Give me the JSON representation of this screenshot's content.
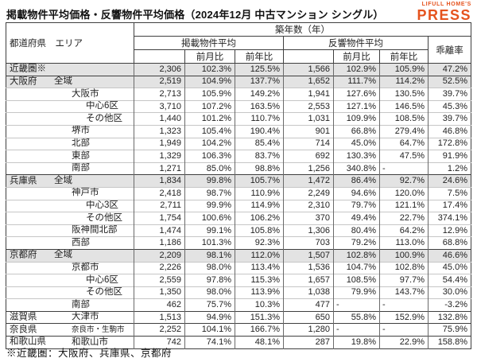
{
  "title": "掲載物件平均価格・反響物件平均価格（2024年12月 中古マンション シングル）",
  "logo": {
    "line1": "LIFULL HOME'S",
    "line2": "PRESS"
  },
  "colors": {
    "brand_orange": "#E5531E",
    "row_shade": "#E3E3E3",
    "border_dark": "#3f3f3f",
    "border_light": "#c6c6c6"
  },
  "footnote": "※近畿圏：大阪府、兵庫県、京都府",
  "table": {
    "header": {
      "pref_area": "都道府県　エリア",
      "building_age": "築年数（年）",
      "listed_avg": "掲載物件平均",
      "response_avg": "反響物件平均",
      "divergence": "乖離率",
      "mom": "前月比",
      "yoy": "前年比"
    },
    "rows": [
      {
        "pref": "近畿圏※",
        "area": "",
        "indent": 0,
        "shaded": true,
        "group": true,
        "values": [
          "2,306",
          "102.3%",
          "125.5%",
          "1,566",
          "102.9%",
          "105.9%",
          "47.2%"
        ]
      },
      {
        "pref": "大阪府",
        "area": "全域",
        "indent": 1,
        "shaded": true,
        "group": true,
        "values": [
          "2,519",
          "104.9%",
          "137.7%",
          "1,652",
          "111.7%",
          "114.2%",
          "52.5%"
        ]
      },
      {
        "pref": "",
        "area": "大阪市",
        "indent": 2,
        "values": [
          "2,713",
          "105.9%",
          "149.2%",
          "1,941",
          "127.6%",
          "130.5%",
          "39.7%"
        ]
      },
      {
        "pref": "",
        "area": "中心6区",
        "indent": 3,
        "values": [
          "3,710",
          "107.2%",
          "163.5%",
          "2,553",
          "127.1%",
          "146.5%",
          "45.3%"
        ]
      },
      {
        "pref": "",
        "area": "その他区",
        "indent": 3,
        "values": [
          "1,440",
          "101.2%",
          "110.7%",
          "1,031",
          "109.9%",
          "108.5%",
          "39.7%"
        ]
      },
      {
        "pref": "",
        "area": "堺市",
        "indent": 2,
        "values": [
          "1,323",
          "105.4%",
          "190.4%",
          "901",
          "66.8%",
          "279.4%",
          "46.8%"
        ]
      },
      {
        "pref": "",
        "area": "北部",
        "indent": 2,
        "values": [
          "1,949",
          "104.2%",
          "85.4%",
          "714",
          "45.0%",
          "64.7%",
          "172.8%"
        ]
      },
      {
        "pref": "",
        "area": "東部",
        "indent": 2,
        "values": [
          "1,329",
          "106.3%",
          "83.7%",
          "692",
          "130.3%",
          "47.5%",
          "91.9%"
        ]
      },
      {
        "pref": "",
        "area": "南部",
        "indent": 2,
        "values": [
          "1,271",
          "85.0%",
          "98.8%",
          "1,256",
          "340.8%",
          "-",
          "1.2%"
        ]
      },
      {
        "pref": "兵庫県",
        "area": "全域",
        "indent": 1,
        "shaded": true,
        "group": true,
        "values": [
          "1,834",
          "99.8%",
          "105.7%",
          "1,472",
          "86.4%",
          "92.7%",
          "24.6%"
        ]
      },
      {
        "pref": "",
        "area": "神戸市",
        "indent": 2,
        "values": [
          "2,418",
          "98.7%",
          "110.9%",
          "2,249",
          "94.6%",
          "120.0%",
          "7.5%"
        ]
      },
      {
        "pref": "",
        "area": "中心3区",
        "indent": 3,
        "values": [
          "2,711",
          "99.9%",
          "114.9%",
          "2,310",
          "79.7%",
          "121.1%",
          "17.4%"
        ]
      },
      {
        "pref": "",
        "area": "その他区",
        "indent": 3,
        "values": [
          "1,754",
          "100.6%",
          "106.2%",
          "370",
          "49.4%",
          "22.7%",
          "374.1%"
        ]
      },
      {
        "pref": "",
        "area": "阪神間北部",
        "indent": 2,
        "values": [
          "1,474",
          "99.1%",
          "105.8%",
          "1,306",
          "80.4%",
          "64.2%",
          "12.9%"
        ]
      },
      {
        "pref": "",
        "area": "西部",
        "indent": 2,
        "values": [
          "1,186",
          "101.3%",
          "92.3%",
          "703",
          "79.2%",
          "113.0%",
          "68.8%"
        ]
      },
      {
        "pref": "京都府",
        "area": "全域",
        "indent": 1,
        "shaded": true,
        "group": true,
        "values": [
          "2,209",
          "98.1%",
          "112.0%",
          "1,507",
          "102.8%",
          "100.9%",
          "46.6%"
        ]
      },
      {
        "pref": "",
        "area": "京都市",
        "indent": 2,
        "values": [
          "2,226",
          "98.0%",
          "113.4%",
          "1,536",
          "104.7%",
          "102.8%",
          "45.0%"
        ]
      },
      {
        "pref": "",
        "area": "中心6区",
        "indent": 3,
        "values": [
          "2,559",
          "97.8%",
          "115.3%",
          "1,657",
          "108.5%",
          "97.7%",
          "54.4%"
        ]
      },
      {
        "pref": "",
        "area": "その他区",
        "indent": 3,
        "values": [
          "1,350",
          "98.0%",
          "113.9%",
          "1,038",
          "79.9%",
          "143.7%",
          "30.0%"
        ]
      },
      {
        "pref": "",
        "area": "南部",
        "indent": 2,
        "values": [
          "462",
          "75.7%",
          "10.3%",
          "477",
          "-",
          "-",
          "-3.2%"
        ]
      },
      {
        "pref": "滋賀県",
        "area": "大津市",
        "indent": 2,
        "group": true,
        "values": [
          "1,513",
          "94.9%",
          "151.3%",
          "650",
          "55.8%",
          "152.9%",
          "132.8%"
        ]
      },
      {
        "pref": "奈良県",
        "area": "奈良市・生駒市",
        "indent": 2,
        "group": true,
        "small_area": true,
        "values": [
          "2,252",
          "104.1%",
          "166.7%",
          "1,280",
          "-",
          "-",
          "75.9%"
        ]
      },
      {
        "pref": "和歌山県",
        "area": "和歌山市",
        "indent": 2,
        "group": true,
        "values": [
          "742",
          "74.1%",
          "48.1%",
          "287",
          "19.8%",
          "22.9%",
          "158.8%"
        ]
      }
    ]
  }
}
